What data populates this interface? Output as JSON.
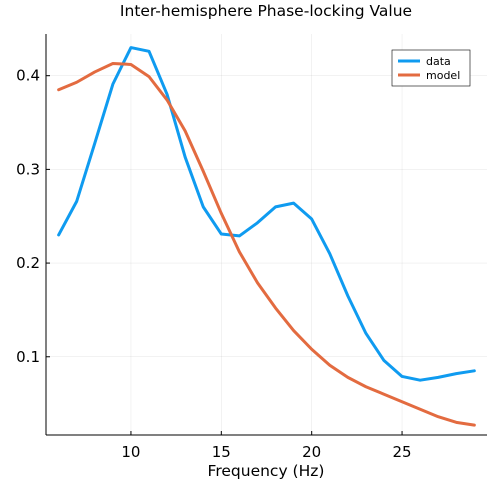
{
  "chart_data": {
    "type": "line",
    "title": "Inter-hemisphere Phase-locking Value",
    "xlabel": "Frequency (Hz)",
    "ylabel": "",
    "xlim": [
      5.3,
      29.7
    ],
    "ylim": [
      0.0165,
      0.4445
    ],
    "xticks": [
      10,
      15,
      20,
      25
    ],
    "xtick_labels": [
      "10",
      "15",
      "20",
      "25"
    ],
    "yticks": [
      0.1,
      0.2,
      0.3,
      0.4
    ],
    "ytick_labels": [
      "0.1",
      "0.2",
      "0.3",
      "0.4"
    ],
    "grid": true,
    "legend_position": "top-right",
    "x": [
      6,
      7,
      8,
      9,
      10,
      11,
      12,
      13,
      14,
      15,
      16,
      17,
      18,
      19,
      20,
      21,
      22,
      23,
      24,
      25,
      26,
      27,
      28,
      29
    ],
    "series": [
      {
        "name": "data",
        "color": "#0f9bf0",
        "values": [
          0.23,
          0.266,
          0.328,
          0.391,
          0.43,
          0.426,
          0.38,
          0.313,
          0.26,
          0.231,
          0.229,
          0.243,
          0.26,
          0.264,
          0.247,
          0.21,
          0.165,
          0.125,
          0.096,
          0.079,
          0.075,
          0.078,
          0.082,
          0.085
        ]
      },
      {
        "name": "model",
        "color": "#e36b40",
        "values": [
          0.385,
          0.393,
          0.404,
          0.413,
          0.412,
          0.399,
          0.374,
          0.341,
          0.298,
          0.253,
          0.212,
          0.179,
          0.152,
          0.128,
          0.108,
          0.091,
          0.078,
          0.068,
          0.06,
          0.052,
          0.044,
          0.036,
          0.03,
          0.027
        ]
      }
    ]
  }
}
